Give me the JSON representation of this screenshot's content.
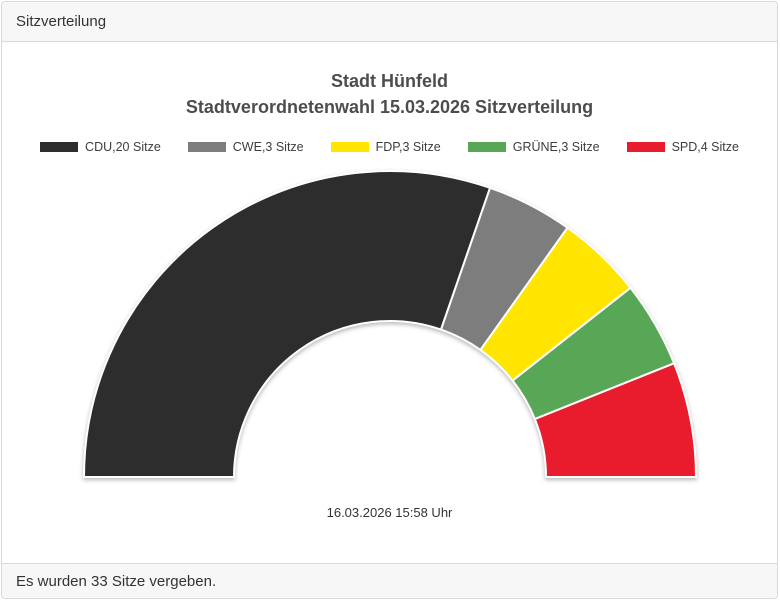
{
  "panel": {
    "header_title": "Sitzverteilung",
    "footer_text": "Es wurden 33 Sitze vergeben."
  },
  "colors": {
    "panel_background": "#ffffff",
    "bar_background": "#f7f7f7",
    "border": "#d9d9d9",
    "title_text": "#4d4d4d",
    "segment_separator": "#ffffff"
  },
  "chart_data": {
    "type": "pie",
    "variant": "half-donut",
    "title": [
      "Stadt Hünfeld",
      "Stadtverordnetenwahl 15.03.2026 Sitzverteilung"
    ],
    "timestamp": "16.03.2026 15:58 Uhr",
    "total_seats": 33,
    "start_angle_deg": 180,
    "end_angle_deg": 0,
    "inner_radius_ratio": 0.51,
    "legend_position": "top",
    "series": [
      {
        "name": "CDU",
        "seats": 20,
        "label": "CDU,20 Sitze",
        "color": "#2d2d2d"
      },
      {
        "name": "CWE",
        "seats": 3,
        "label": "CWE,3 Sitze",
        "color": "#7d7d7d"
      },
      {
        "name": "FDP",
        "seats": 3,
        "label": "FDP,3 Sitze",
        "color": "#ffe500"
      },
      {
        "name": "GRÜNE",
        "seats": 3,
        "label": "GRÜNE,3 Sitze",
        "color": "#57a757"
      },
      {
        "name": "SPD",
        "seats": 4,
        "label": "SPD,4 Sitze",
        "color": "#e81c2c"
      }
    ]
  }
}
